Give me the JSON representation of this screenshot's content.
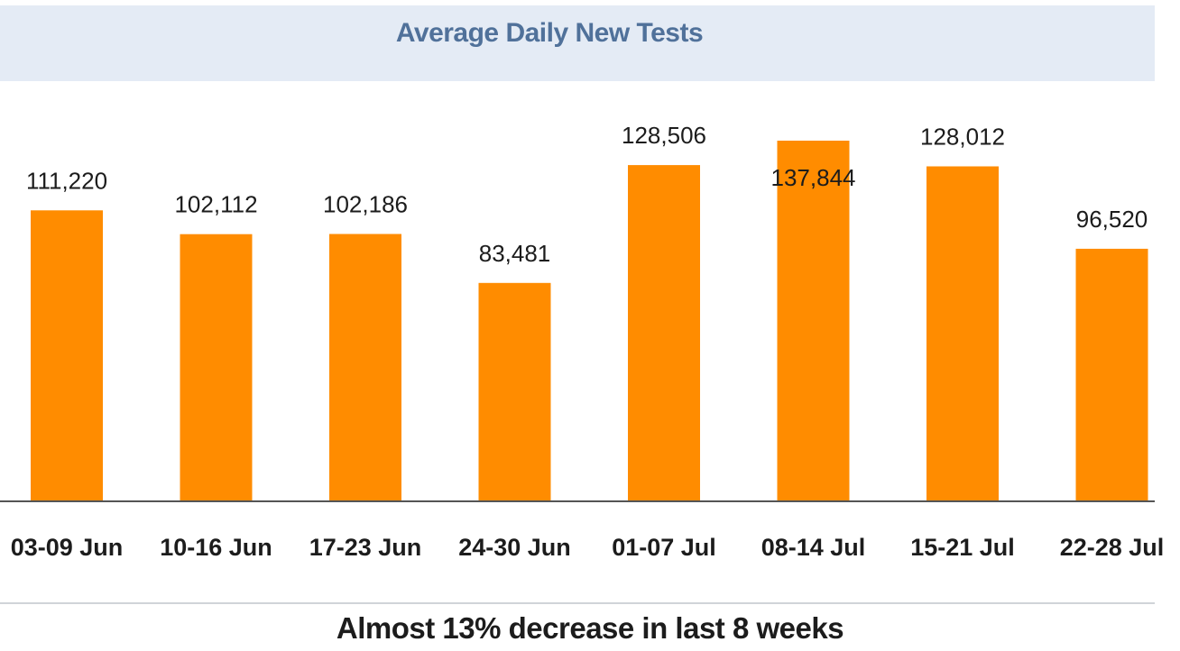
{
  "chart_data": {
    "type": "bar",
    "title": "Average Daily New Tests",
    "categories": [
      "03-09 Jun",
      "10-16 Jun",
      "17-23 Jun",
      "24-30 Jun",
      "01-07 Jul",
      "08-14 Jul",
      "15-21 Jul",
      "22-28 Jul"
    ],
    "values": [
      111220,
      102112,
      102186,
      83481,
      128506,
      137844,
      128012,
      96520
    ],
    "value_labels": [
      "111,220",
      "102,112",
      "102,186",
      "83,481",
      "128,506",
      "137,844",
      "128,012",
      "96,520"
    ],
    "xlabel": "",
    "ylabel": "",
    "ylim": [
      0,
      137844
    ],
    "grid": false,
    "legend": "none",
    "colors": {
      "bar": "#ff8c00",
      "title_band": "#e4ebf5",
      "title_text": "#50719a",
      "axis": "#555555"
    }
  },
  "footer": {
    "caption": "Almost 13% decrease in last 8 weeks"
  }
}
